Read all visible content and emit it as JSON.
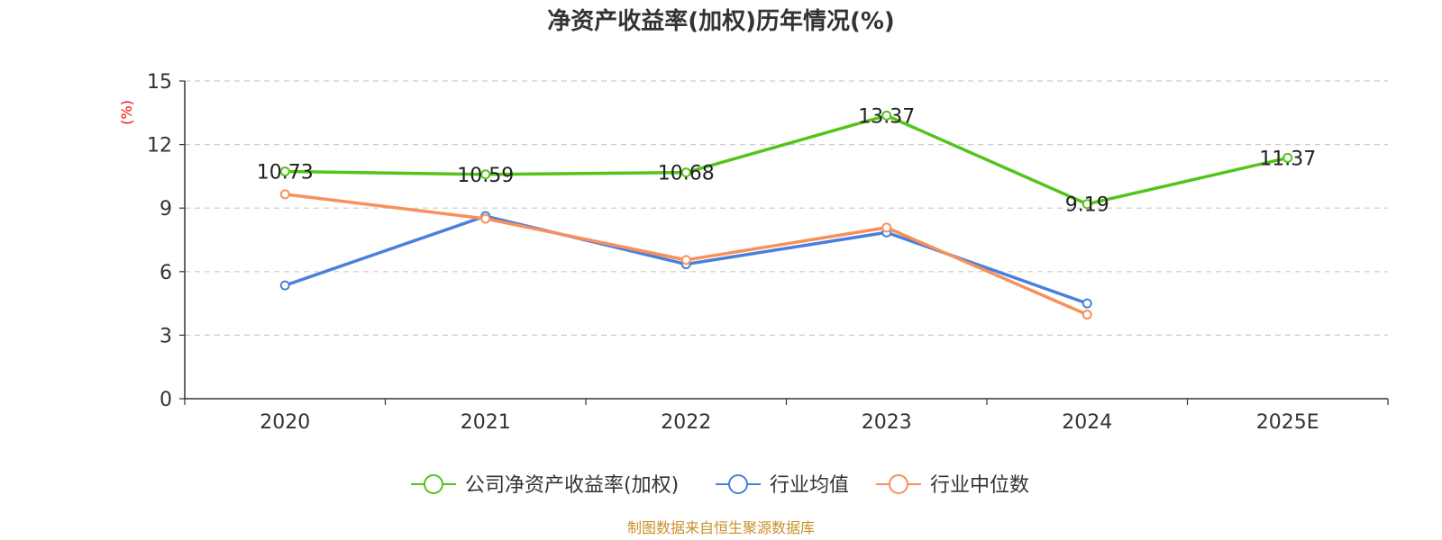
{
  "chart_data": {
    "type": "line",
    "title": "净资产收益率(加权)历年情况(%)",
    "y_unit": "(%)",
    "categories": [
      "2020",
      "2021",
      "2022",
      "2023",
      "2024",
      "2025E"
    ],
    "ylim": [
      0,
      15
    ],
    "yticks": [
      0,
      3,
      6,
      9,
      12,
      15
    ],
    "yticks_labels": [
      "0",
      "3",
      "6",
      "9",
      "12",
      "15"
    ],
    "grid": true,
    "legend_position": "bottom",
    "series": [
      {
        "name": "公司净资产收益率(加权)",
        "color": "#52c41a",
        "values": [
          10.73,
          10.59,
          10.68,
          13.37,
          9.19,
          11.37
        ],
        "labels": [
          "10.73",
          "10.59",
          "10.68",
          "13.37",
          "9.19",
          "11.37"
        ],
        "show_labels": true
      },
      {
        "name": "行业均值",
        "color": "#4a7fdc",
        "values": [
          5.35,
          8.62,
          6.35,
          7.85,
          4.5,
          null
        ],
        "show_labels": false
      },
      {
        "name": "行业中位数",
        "color": "#f7905a",
        "values": [
          9.65,
          8.5,
          6.55,
          8.08,
          3.97,
          null
        ],
        "show_labels": false
      }
    ],
    "source": "制图数据来自恒生聚源数据库"
  }
}
